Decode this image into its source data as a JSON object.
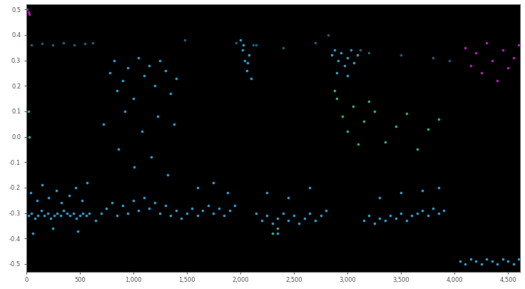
{
  "chart_data": {
    "type": "scatter",
    "xlim": [
      0,
      4610
    ],
    "ylim": [
      -0.53,
      0.52
    ],
    "xticks": [
      0,
      500,
      {
        "value": 1000,
        "label": "1,000"
      },
      {
        "value": 1500,
        "label": "1,500"
      },
      {
        "value": 2000,
        "label": "2,000"
      },
      {
        "value": 2500,
        "label": "2,500"
      },
      {
        "value": 3000,
        "label": "3,000"
      },
      {
        "value": 3500,
        "label": "3,500"
      },
      {
        "value": 4000,
        "label": "4,000"
      },
      {
        "value": 4500,
        "label": "4,500"
      }
    ],
    "yticks": [
      -0.5,
      -0.4,
      -0.3,
      -0.2,
      -0.1,
      0.0,
      0.1,
      0.2,
      0.3,
      0.4,
      0.5
    ],
    "grid": false,
    "series": [
      {
        "color": "#1f6f8f",
        "marker": "o",
        "x": [
          50,
          150,
          250,
          350,
          450,
          550,
          2150,
          2400,
          2700,
          3200,
          3500,
          3800,
          620,
          1480,
          1960,
          2120,
          2820,
          3120,
          3950
        ],
        "values": [
          0.36,
          0.365,
          0.36,
          0.37,
          0.36,
          0.365,
          0.36,
          0.35,
          0.37,
          0.33,
          0.32,
          0.31,
          0.37,
          0.38,
          0.37,
          0.36,
          0.4,
          0.34,
          0.3
        ]
      },
      {
        "color": "#29b6f0",
        "marker": "o",
        "x": [
          20,
          50,
          80,
          110,
          140,
          170,
          200,
          230,
          260,
          290,
          320,
          350,
          380,
          410,
          440,
          470,
          500,
          530,
          560,
          590,
          40,
          100,
          150,
          210,
          280,
          330,
          400,
          460,
          520,
          570,
          60,
          250,
          480,
          650,
          700,
          750,
          800,
          850,
          900,
          950,
          1000,
          1050,
          1100,
          1150,
          1200,
          1250,
          1300,
          1350,
          1400,
          1450,
          780,
          820,
          850,
          900,
          950,
          1000,
          1050,
          1100,
          1150,
          1200,
          1250,
          1300,
          1350,
          1400,
          720,
          860,
          920,
          1010,
          1080,
          1170,
          1230,
          1320,
          1380,
          1500,
          1550,
          1600,
          1650,
          1700,
          1750,
          1800,
          1850,
          1900,
          1950,
          1600,
          1750,
          1880,
          2000,
          2020,
          2040,
          2060,
          2080,
          2100,
          2030,
          2070,
          2150,
          2200,
          2250,
          2300,
          2350,
          2400,
          2450,
          2500,
          2550,
          2600,
          2650,
          2700,
          2750,
          2800,
          2250,
          2450,
          2650,
          2350,
          2850,
          2880,
          2910,
          2940,
          2970,
          3000,
          3030,
          3060,
          3090,
          2900,
          3000,
          3150,
          3200,
          3250,
          3300,
          3350,
          3400,
          3450,
          3500,
          3550,
          3600,
          3650,
          3700,
          3750,
          3800,
          3850,
          3900,
          3300,
          3500,
          3700,
          3850,
          4050,
          4100,
          4150,
          4200,
          4250,
          4300,
          4350,
          4400,
          4450,
          4500,
          4550,
          4600
        ],
        "values": [
          -0.31,
          -0.3,
          -0.32,
          -0.31,
          -0.29,
          -0.31,
          -0.3,
          -0.32,
          -0.31,
          -0.3,
          -0.31,
          -0.29,
          -0.3,
          -0.31,
          -0.3,
          -0.32,
          -0.31,
          -0.3,
          -0.31,
          -0.3,
          -0.22,
          -0.25,
          -0.19,
          -0.24,
          -0.21,
          -0.26,
          -0.23,
          -0.2,
          -0.25,
          -0.18,
          -0.38,
          -0.36,
          -0.37,
          -0.33,
          -0.3,
          -0.28,
          -0.26,
          -0.31,
          -0.27,
          -0.3,
          -0.25,
          -0.29,
          -0.24,
          -0.28,
          -0.26,
          -0.3,
          -0.27,
          -0.31,
          -0.29,
          -0.32,
          0.25,
          0.3,
          0.18,
          0.22,
          0.27,
          0.15,
          0.31,
          0.24,
          0.28,
          0.2,
          0.3,
          0.26,
          0.17,
          0.23,
          0.05,
          -0.05,
          0.1,
          -0.12,
          0.02,
          -0.08,
          0.08,
          -0.15,
          0.05,
          -0.3,
          -0.28,
          -0.31,
          -0.29,
          -0.27,
          -0.3,
          -0.28,
          -0.31,
          -0.29,
          -0.27,
          -0.2,
          -0.18,
          -0.22,
          0.38,
          0.34,
          0.3,
          0.26,
          0.32,
          0.23,
          0.36,
          0.29,
          -0.3,
          -0.33,
          -0.31,
          -0.34,
          -0.32,
          -0.3,
          -0.33,
          -0.31,
          -0.34,
          -0.32,
          -0.3,
          -0.33,
          -0.31,
          -0.29,
          -0.22,
          -0.24,
          -0.2,
          -0.38,
          0.32,
          0.34,
          0.3,
          0.33,
          0.28,
          0.31,
          0.34,
          0.29,
          0.32,
          0.25,
          0.24,
          -0.33,
          -0.31,
          -0.34,
          -0.32,
          -0.33,
          -0.31,
          -0.32,
          -0.3,
          -0.33,
          -0.31,
          -0.3,
          -0.29,
          -0.31,
          -0.28,
          -0.3,
          -0.29,
          -0.24,
          -0.22,
          -0.21,
          -0.2,
          -0.49,
          -0.5,
          -0.48,
          -0.49,
          -0.5,
          -0.48,
          -0.49,
          -0.5,
          -0.48,
          -0.49,
          -0.5,
          -0.48
        ]
      },
      {
        "color": "#2ecc8a",
        "marker": "o",
        "x": [
          20,
          30,
          2900,
          2950,
          3000,
          3050,
          3100,
          3150,
          3250,
          3350,
          3450,
          3550,
          3650,
          3750,
          3850,
          2300,
          2350,
          2880,
          3200
        ],
        "values": [
          0.1,
          0.0,
          0.15,
          0.08,
          0.02,
          0.12,
          -0.03,
          0.06,
          0.1,
          -0.02,
          0.04,
          0.09,
          -0.05,
          0.03,
          0.07,
          -0.38,
          -0.36,
          0.18,
          0.14
        ]
      },
      {
        "color": "#d020d0",
        "marker": "o",
        "x": [
          10,
          20,
          30,
          4100,
          4150,
          4200,
          4250,
          4300,
          4350,
          4400,
          4450,
          4500,
          4550,
          4600
        ],
        "values": [
          0.5,
          0.49,
          0.48,
          0.35,
          0.28,
          0.33,
          0.25,
          0.37,
          0.3,
          0.22,
          0.34,
          0.27,
          0.31,
          0.36
        ]
      }
    ]
  }
}
